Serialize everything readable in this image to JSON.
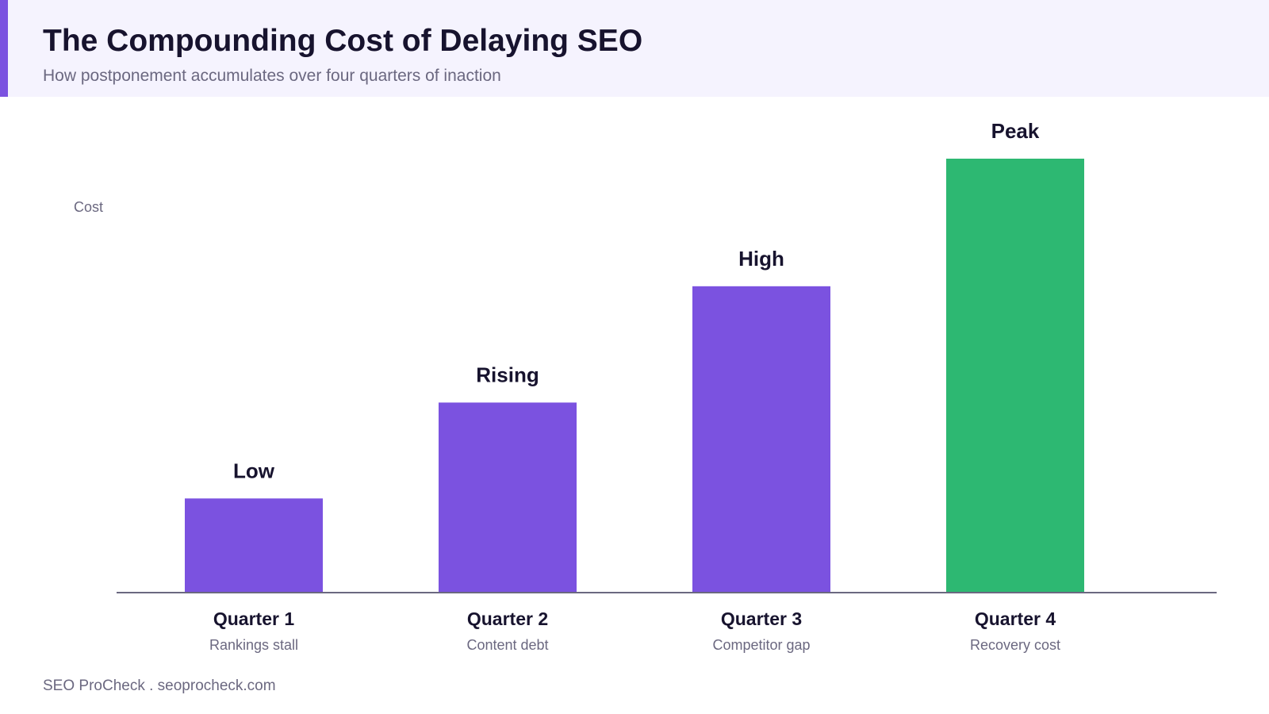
{
  "header": {
    "title": "The Compounding Cost of Delaying SEO",
    "subtitle": "How postponement accumulates over four quarters of inaction"
  },
  "footer": {
    "text": "SEO ProCheck . seoprocheck.com"
  },
  "colors": {
    "accent": "#7b52e0",
    "highlight": "#2db872",
    "title": "#17132e",
    "muted": "#6b6880",
    "header_bg": "#f5f3fe"
  },
  "chart_data": {
    "type": "bar",
    "title": "The Compounding Cost of Delaying SEO",
    "subtitle": "How postponement accumulates over four quarters of inaction",
    "ylabel": "Cost",
    "xlabel": "",
    "ylim": [
      0,
      100
    ],
    "grid": false,
    "legend": "none",
    "categories": [
      "Quarter 1",
      "Quarter 2",
      "Quarter 3",
      "Quarter 4"
    ],
    "sublabels": [
      "Rankings stall",
      "Content debt",
      "Competitor gap",
      "Recovery cost"
    ],
    "value_labels": [
      "Low",
      "Rising",
      "High",
      "Peak"
    ],
    "values": [
      21.7,
      43.8,
      70.6,
      100
    ],
    "bar_colors": [
      "#7b52e0",
      "#7b52e0",
      "#7b52e0",
      "#2db872"
    ]
  }
}
